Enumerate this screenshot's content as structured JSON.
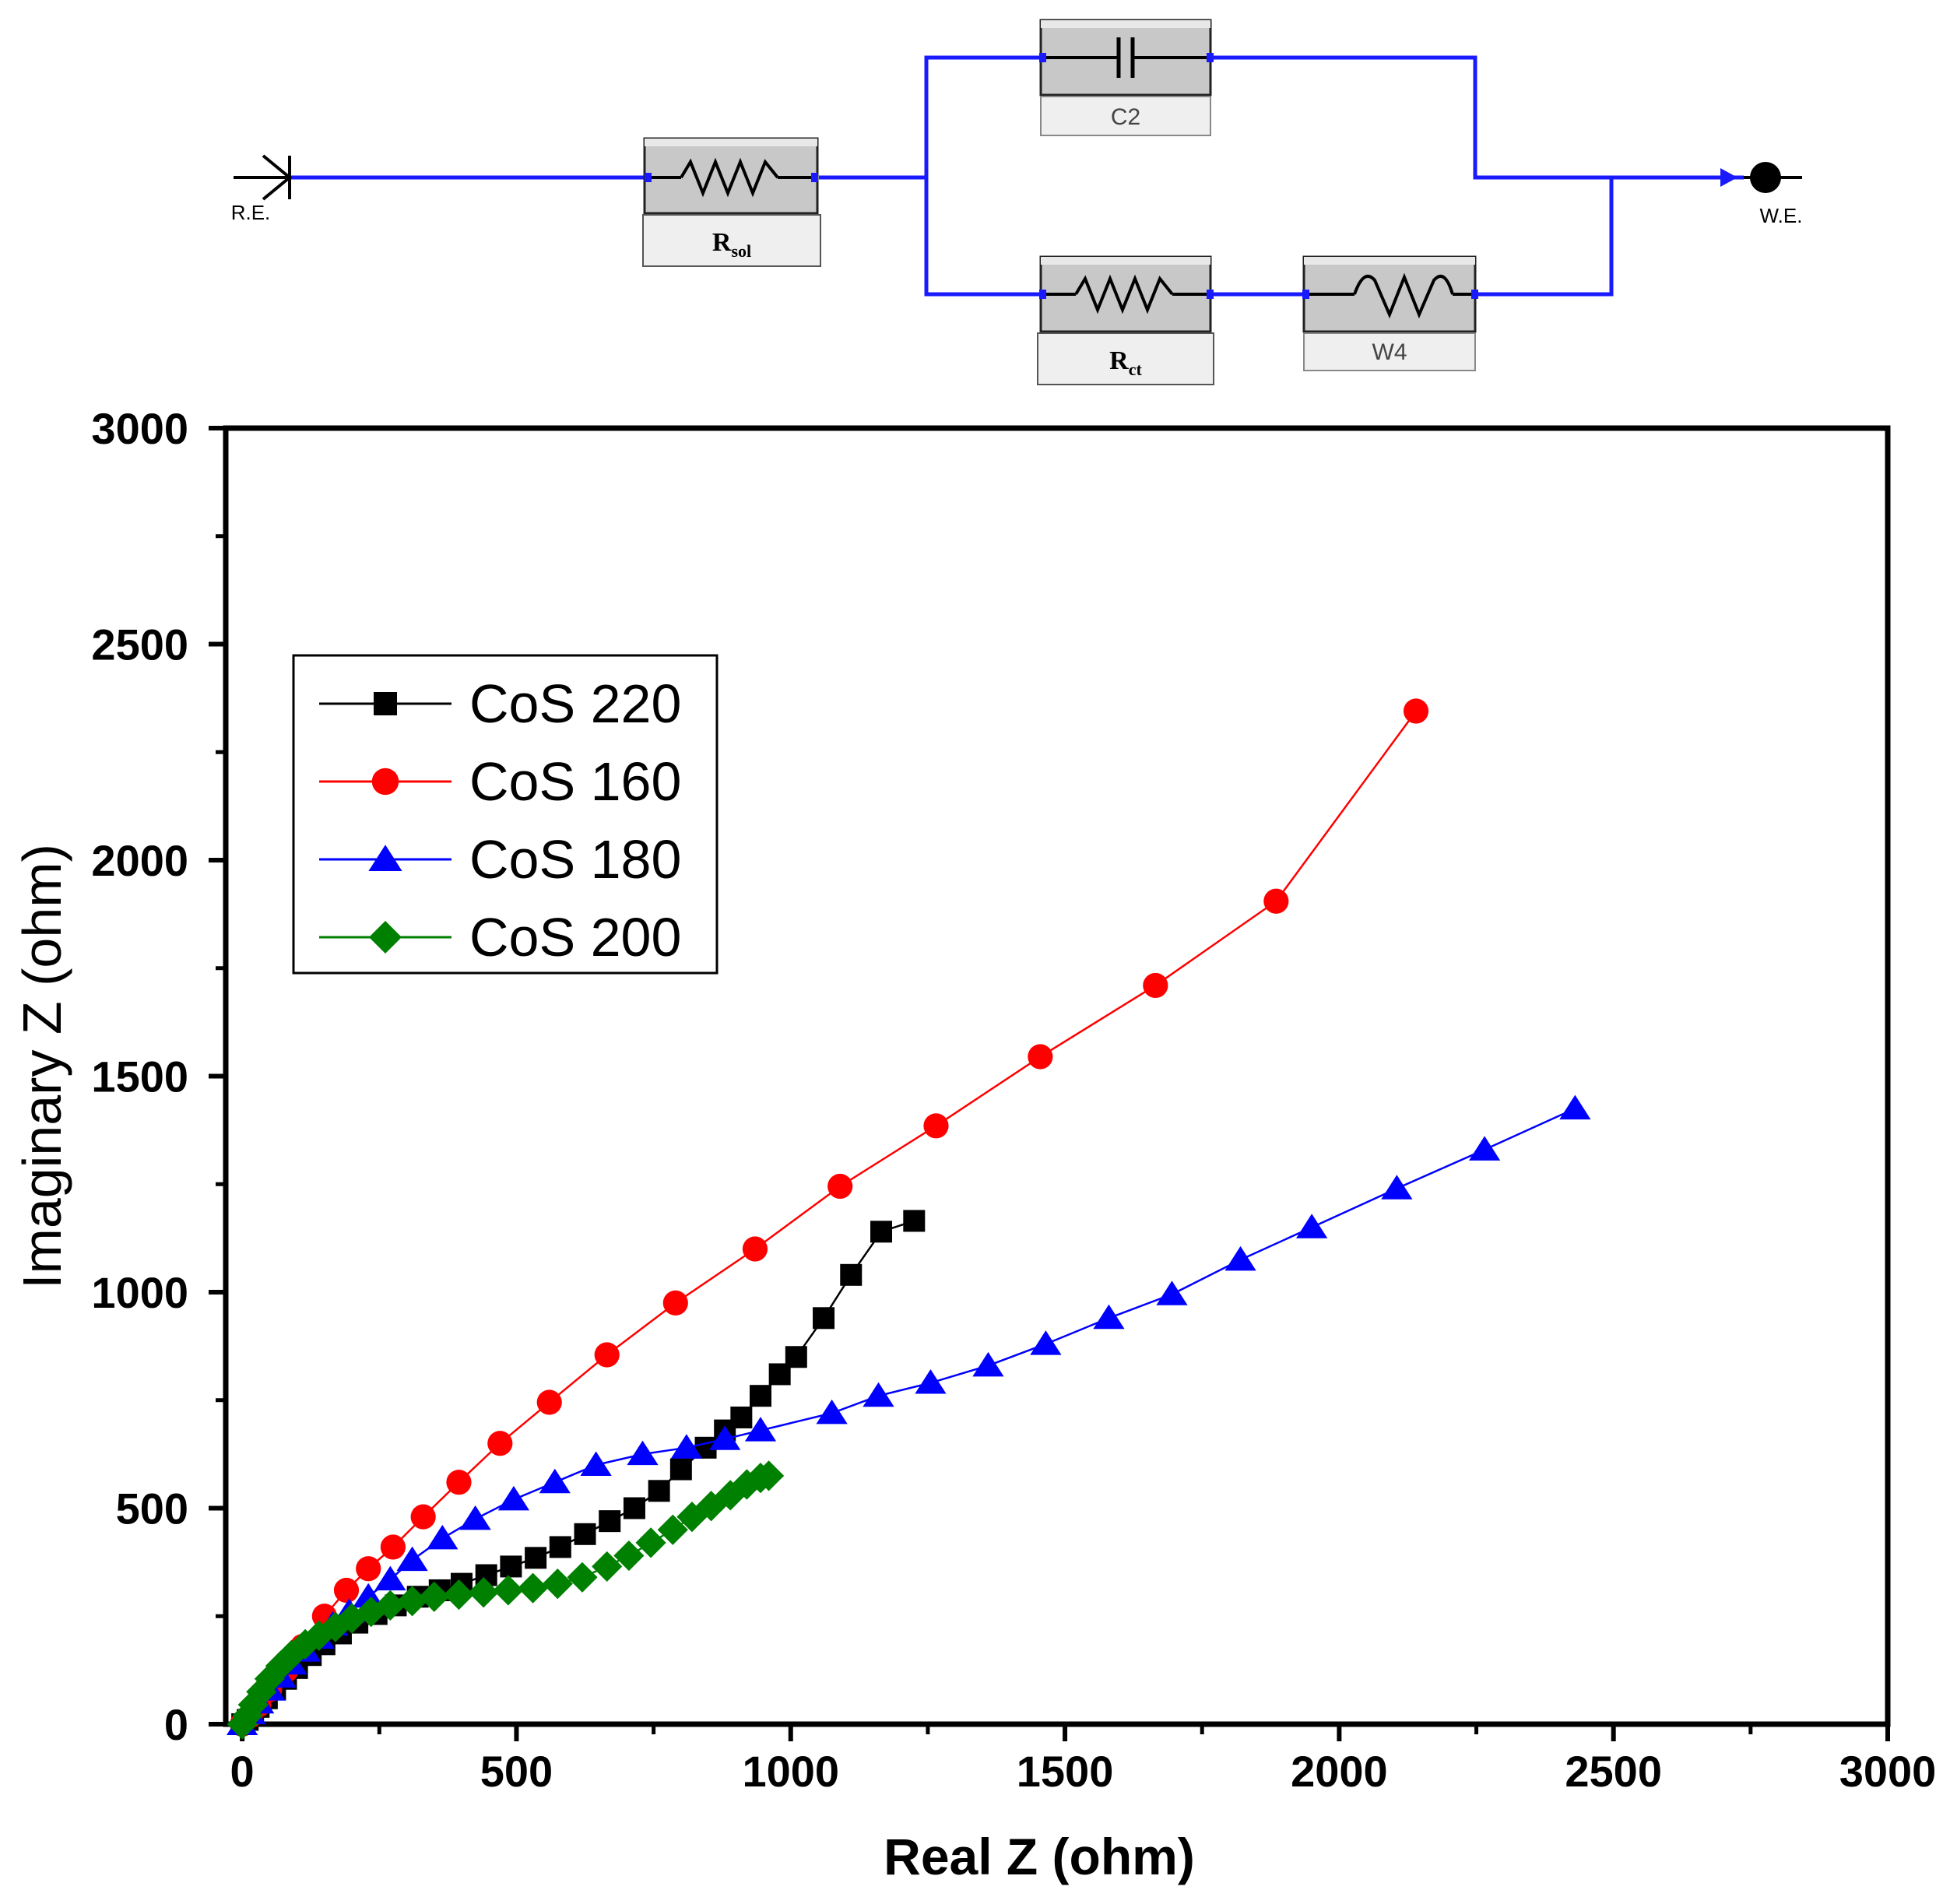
{
  "circuit": {
    "left_terminal": "R.E.",
    "right_terminal": "W.E.",
    "elements": {
      "r_sol": {
        "main": "R",
        "sub": "sol"
      },
      "c2": {
        "label": "C2"
      },
      "r_ct": {
        "main": "R",
        "sub": "ct"
      },
      "w4": {
        "label": "W4"
      }
    },
    "wire_color": "#1a1aff"
  },
  "chart_data": {
    "type": "scatter",
    "xlabel": "Real Z (ohm)",
    "ylabel": "Imaginary Z (ohm)",
    "xlim": [
      -30,
      3000
    ],
    "ylim": [
      0,
      3000
    ],
    "xticks": [
      "0",
      "500",
      "1000",
      "1500",
      "2000",
      "2500",
      "3000"
    ],
    "yticks": [
      "0",
      "500",
      "1000",
      "1500",
      "2000",
      "2500",
      "3000"
    ],
    "legend_position": "top-left",
    "series": [
      {
        "name": "CoS 220",
        "color": "#000000",
        "marker": "square",
        "x": [
          0,
          10,
          20,
          30,
          45,
          60,
          80,
          100,
          125,
          150,
          180,
          210,
          245,
          280,
          320,
          360,
          400,
          445,
          490,
          535,
          580,
          625,
          670,
          715,
          760,
          800,
          845,
          880,
          910,
          945,
          980,
          1010,
          1060,
          1110,
          1165,
          1225
        ],
        "y": [
          0,
          10,
          25,
          40,
          60,
          80,
          105,
          130,
          160,
          185,
          210,
          235,
          255,
          275,
          295,
          310,
          325,
          345,
          365,
          385,
          410,
          440,
          470,
          500,
          540,
          590,
          640,
          680,
          710,
          760,
          810,
          850,
          940,
          1040,
          1140,
          1165
        ]
      },
      {
        "name": "CoS 160",
        "color": "#ff0000",
        "marker": "circle",
        "x": [
          0,
          15,
          30,
          50,
          80,
          110,
          150,
          190,
          230,
          275,
          330,
          395,
          470,
          560,
          665,
          790,
          935,
          1090,
          1265,
          1455,
          1665,
          1885,
          2140
        ],
        "y": [
          0,
          20,
          45,
          80,
          125,
          180,
          250,
          310,
          360,
          410,
          480,
          560,
          650,
          745,
          855,
          975,
          1100,
          1245,
          1385,
          1545,
          1710,
          1905,
          2345
        ]
      },
      {
        "name": "CoS 180",
        "color": "#0000ff",
        "marker": "triangle",
        "x": [
          0,
          15,
          30,
          50,
          70,
          90,
          115,
          140,
          165,
          195,
          230,
          270,
          310,
          365,
          425,
          495,
          570,
          645,
          730,
          810,
          880,
          945,
          1075,
          1160,
          1255,
          1360,
          1465,
          1580,
          1695,
          1820,
          1950,
          2105,
          2265,
          2430
        ],
        "y": [
          0,
          25,
          50,
          80,
          110,
          140,
          170,
          200,
          230,
          260,
          295,
          335,
          380,
          430,
          475,
          520,
          560,
          600,
          625,
          640,
          660,
          680,
          720,
          760,
          790,
          830,
          880,
          940,
          995,
          1075,
          1150,
          1240,
          1330,
          1425
        ]
      },
      {
        "name": "CoS 200",
        "color": "#008000",
        "marker": "diamond",
        "x": [
          0,
          10,
          20,
          35,
          50,
          70,
          90,
          115,
          140,
          170,
          200,
          235,
          270,
          310,
          350,
          395,
          440,
          485,
          530,
          575,
          620,
          665,
          705,
          745,
          785,
          820,
          855,
          890,
          920,
          945,
          960
        ],
        "y": [
          0,
          20,
          45,
          75,
          105,
          135,
          160,
          185,
          205,
          225,
          245,
          260,
          275,
          285,
          295,
          300,
          305,
          310,
          315,
          325,
          340,
          365,
          390,
          420,
          450,
          480,
          505,
          530,
          555,
          570,
          575
        ]
      }
    ]
  }
}
